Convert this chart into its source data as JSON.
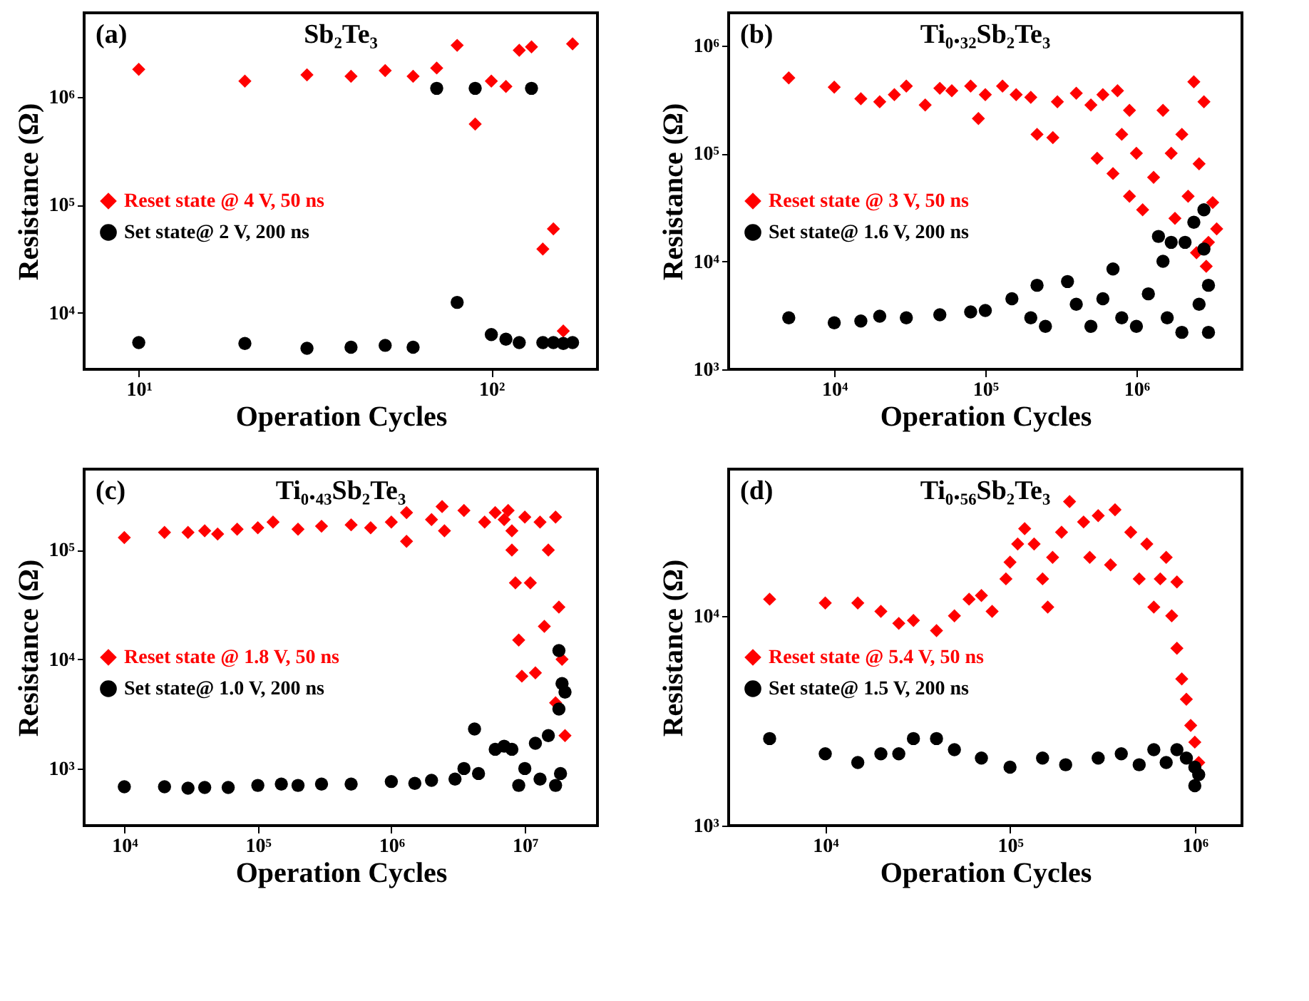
{
  "chart_data": [
    {
      "type": "scatter",
      "title": "Sb₂Te₃",
      "annotations": [
        "(a)"
      ],
      "xlabel": "Operation Cycles",
      "ylabel": "Resistance (Ω)",
      "log": "xy",
      "legend": "left",
      "grid": false,
      "xlim": [
        7,
        200
      ],
      "ylim": [
        3000,
        6000000
      ],
      "xticks": [
        {
          "value": 10,
          "label": "10¹"
        },
        {
          "value": 100,
          "label": "10²"
        }
      ],
      "yticks": [
        {
          "value": 10000,
          "label": "10⁴"
        },
        {
          "value": 100000,
          "label": "10⁵"
        },
        {
          "value": 1000000,
          "label": "10⁶"
        }
      ],
      "series": [
        {
          "name": "Reset state @ 4 V, 50 ns",
          "color": "#ff0000",
          "marker": "diamond",
          "x": [
            10,
            20,
            30,
            40,
            50,
            60,
            70,
            80,
            90,
            100,
            110,
            120,
            130,
            140,
            150,
            160,
            170
          ],
          "values": [
            1800000,
            1400000,
            1600000,
            1550000,
            1750000,
            1550000,
            1850000,
            3000000,
            560000,
            1400000,
            1250000,
            2700000,
            2900000,
            39000,
            60000,
            6800,
            3100000
          ]
        },
        {
          "name": "Set  state@ 2 V, 200 ns",
          "color": "#000000",
          "marker": "circle",
          "x": [
            10,
            20,
            30,
            40,
            50,
            60,
            70,
            80,
            90,
            100,
            110,
            120,
            130,
            140,
            150,
            160,
            170
          ],
          "values": [
            5300,
            5200,
            4700,
            4800,
            5000,
            4800,
            1200000,
            12500,
            1200000,
            6300,
            5700,
            5300,
            1200000,
            5300,
            5300,
            5200,
            5300
          ]
        }
      ]
    },
    {
      "type": "scatter",
      "title": "Ti₀.₃₂Sb₂Te₃",
      "annotations": [
        "(b)"
      ],
      "xlabel": "Operation Cycles",
      "ylabel": "Resistance (Ω)",
      "log": "xy",
      "legend": "left",
      "grid": false,
      "xlim": [
        2000,
        5000000
      ],
      "ylim": [
        1000,
        2000000
      ],
      "xticks": [
        {
          "value": 10000,
          "label": "10⁴"
        },
        {
          "value": 100000,
          "label": "10⁵"
        },
        {
          "value": 1000000,
          "label": "10⁶"
        }
      ],
      "yticks": [
        {
          "value": 1000,
          "label": "10³"
        },
        {
          "value": 10000,
          "label": "10⁴"
        },
        {
          "value": 100000,
          "label": "10⁵"
        },
        {
          "value": 1000000,
          "label": "10⁶"
        }
      ],
      "series": [
        {
          "name": "Reset state @ 3 V, 50 ns",
          "color": "#ff0000",
          "marker": "diamond",
          "x": [
            5000,
            10000,
            15000,
            20000,
            25000,
            30000,
            40000,
            50000,
            60000,
            80000,
            90000,
            100000,
            130000,
            160000,
            200000,
            220000,
            280000,
            300000,
            400000,
            500000,
            550000,
            600000,
            700000,
            750000,
            800000,
            900000,
            900000,
            1000000,
            1100000,
            1300000,
            1500000,
            1700000,
            1800000,
            2000000,
            2200000,
            2400000,
            2500000,
            2600000,
            2800000,
            2900000,
            3000000,
            3200000,
            3400000
          ],
          "values": [
            500000,
            410000,
            320000,
            300000,
            350000,
            420000,
            280000,
            400000,
            380000,
            420000,
            210000,
            350000,
            420000,
            350000,
            330000,
            150000,
            140000,
            300000,
            360000,
            280000,
            90000,
            350000,
            65000,
            380000,
            150000,
            250000,
            40000,
            100000,
            30000,
            60000,
            250000,
            100000,
            25000,
            150000,
            40000,
            460000,
            12000,
            80000,
            300000,
            9000,
            15000,
            35000,
            20000
          ]
        },
        {
          "name": "Set  state@ 1.6 V, 200 ns",
          "color": "#000000",
          "marker": "circle",
          "x": [
            5000,
            10000,
            15000,
            20000,
            30000,
            50000,
            80000,
            100000,
            150000,
            200000,
            220000,
            250000,
            350000,
            400000,
            500000,
            600000,
            700000,
            800000,
            1000000,
            1200000,
            1400000,
            1500000,
            1600000,
            1700000,
            2000000,
            2100000,
            2400000,
            2600000,
            2800000,
            2800000,
            3000000,
            3000000
          ],
          "values": [
            3000,
            2700,
            2800,
            3100,
            3000,
            3200,
            3400,
            3500,
            4500,
            3000,
            6000,
            2500,
            6500,
            4000,
            2500,
            4500,
            8500,
            3000,
            2500,
            5000,
            17000,
            10000,
            3000,
            15000,
            2200,
            15000,
            23000,
            4000,
            30000,
            13000,
            2200,
            6000
          ]
        }
      ]
    },
    {
      "type": "scatter",
      "title": "Ti₀.₄₃Sb₂Te₃",
      "annotations": [
        "(c)"
      ],
      "xlabel": "Operation Cycles",
      "ylabel": "Resistance (Ω)",
      "log": "xy",
      "legend": "left",
      "grid": false,
      "xlim": [
        5000,
        35000000
      ],
      "ylim": [
        300,
        550000
      ],
      "xticks": [
        {
          "value": 10000,
          "label": "10⁴"
        },
        {
          "value": 100000,
          "label": "10⁵"
        },
        {
          "value": 1000000,
          "label": "10⁶"
        },
        {
          "value": 10000000,
          "label": "10⁷"
        }
      ],
      "yticks": [
        {
          "value": 1000,
          "label": "10³"
        },
        {
          "value": 10000,
          "label": "10⁴"
        },
        {
          "value": 100000,
          "label": "10⁵"
        }
      ],
      "series": [
        {
          "name": "Reset state @ 1.8 V, 50 ns",
          "color": "#ff0000",
          "marker": "diamond",
          "x": [
            10000,
            20000,
            30000,
            40000,
            50000,
            70000,
            100000,
            130000,
            200000,
            300000,
            500000,
            700000,
            1000000,
            1300000,
            1300000,
            2000000,
            2400000,
            2500000,
            3500000,
            5000000,
            6000000,
            7000000,
            7500000,
            8000000,
            8000000,
            8500000,
            9000000,
            9500000,
            10000000,
            11000000,
            12000000,
            13000000,
            14000000,
            15000000,
            17000000,
            17000000,
            18000000,
            19000000,
            20000000
          ],
          "values": [
            130000,
            145000,
            145000,
            150000,
            140000,
            155000,
            160000,
            180000,
            155000,
            165000,
            170000,
            160000,
            180000,
            120000,
            220000,
            190000,
            250000,
            150000,
            230000,
            180000,
            220000,
            190000,
            230000,
            150000,
            100000,
            50000,
            15000,
            7000,
            200000,
            50000,
            7500,
            180000,
            20000,
            100000,
            200000,
            4000,
            30000,
            10000,
            2000
          ]
        },
        {
          "name": "Set  state@ 1.0 V, 200 ns",
          "color": "#000000",
          "marker": "circle",
          "x": [
            10000,
            20000,
            30000,
            40000,
            60000,
            100000,
            150000,
            200000,
            300000,
            500000,
            1000000,
            1500000,
            2000000,
            3000000,
            3500000,
            4200000,
            4500000,
            6000000,
            7000000,
            8000000,
            9000000,
            10000000,
            12000000,
            13000000,
            15000000,
            17000000,
            18000000,
            18000000,
            18500000,
            19000000,
            20000000
          ],
          "values": [
            680,
            680,
            660,
            670,
            670,
            700,
            720,
            700,
            720,
            720,
            760,
            730,
            780,
            800,
            1000,
            2300,
            900,
            1500,
            1600,
            1500,
            700,
            1000,
            1700,
            800,
            2000,
            700,
            3500,
            12000,
            900,
            6000,
            5000
          ]
        }
      ]
    },
    {
      "type": "scatter",
      "title": "Ti₀.₅₆Sb₂Te₃",
      "annotations": [
        "(d)"
      ],
      "xlabel": "Operation Cycles",
      "ylabel": "Resistance (Ω)",
      "log": "xy",
      "legend": "left",
      "grid": false,
      "xlim": [
        3000,
        1800000
      ],
      "ylim": [
        1000,
        50000
      ],
      "xticks": [
        {
          "value": 10000,
          "label": "10⁴"
        },
        {
          "value": 100000,
          "label": "10⁵"
        },
        {
          "value": 1000000,
          "label": "10⁶"
        }
      ],
      "yticks": [
        {
          "value": 1000,
          "label": "10³"
        },
        {
          "value": 10000,
          "label": "10⁴"
        }
      ],
      "series": [
        {
          "name": "Reset state @ 5.4 V, 50 ns",
          "color": "#ff0000",
          "marker": "diamond",
          "x": [
            5000,
            10000,
            15000,
            20000,
            25000,
            30000,
            40000,
            50000,
            60000,
            70000,
            80000,
            95000,
            100000,
            110000,
            120000,
            135000,
            150000,
            160000,
            170000,
            190000,
            210000,
            250000,
            270000,
            300000,
            350000,
            370000,
            450000,
            500000,
            550000,
            600000,
            650000,
            700000,
            750000,
            800000,
            800000,
            850000,
            900000,
            950000,
            1000000,
            1050000
          ],
          "values": [
            12000,
            11500,
            11500,
            10500,
            9200,
            9500,
            8500,
            10000,
            12000,
            12500,
            10500,
            15000,
            18000,
            22000,
            26000,
            22000,
            15000,
            11000,
            19000,
            25000,
            35000,
            28000,
            19000,
            30000,
            17500,
            32000,
            25000,
            15000,
            22000,
            11000,
            15000,
            19000,
            10000,
            14500,
            7000,
            5000,
            4000,
            3000,
            2500,
            2000
          ]
        },
        {
          "name": "Set  state@ 1.5 V, 200 ns",
          "color": "#000000",
          "marker": "circle",
          "x": [
            5000,
            10000,
            15000,
            20000,
            25000,
            30000,
            40000,
            50000,
            70000,
            100000,
            150000,
            200000,
            300000,
            400000,
            500000,
            600000,
            700000,
            800000,
            900000,
            1000000,
            1000000,
            1050000
          ],
          "values": [
            2600,
            2200,
            2000,
            2200,
            2200,
            2600,
            2600,
            2300,
            2100,
            1900,
            2100,
            1950,
            2100,
            2200,
            1950,
            2300,
            2000,
            2300,
            2100,
            1900,
            1550,
            1750
          ]
        }
      ]
    }
  ]
}
